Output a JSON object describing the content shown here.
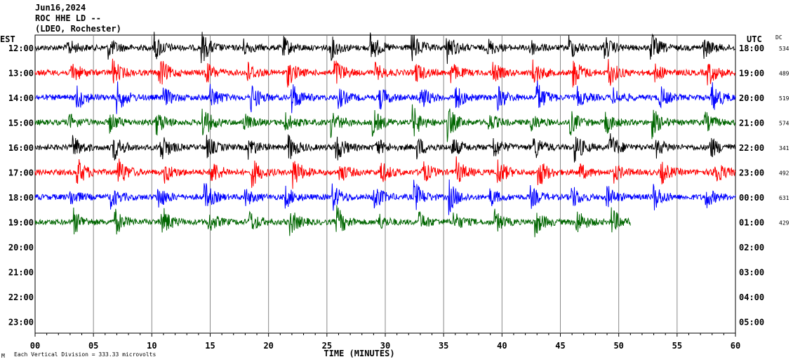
{
  "header": {
    "date": "Jun16,2024",
    "station": "ROC HHE LD --",
    "network": "(LDEO, Rochester)"
  },
  "chart_data": {
    "type": "line",
    "title": "Jun16,2024 ROC HHE LD --",
    "xlabel": "TIME (MINUTES)",
    "left_axis_title": "EST",
    "right_axis_title": "UTC",
    "dc_title": "DC",
    "xlim": [
      0,
      60
    ],
    "x_ticks": [
      "00",
      "05",
      "10",
      "15",
      "20",
      "25",
      "30",
      "35",
      "40",
      "45",
      "50",
      "55",
      "60"
    ],
    "est_labels": [
      "12:00",
      "13:00",
      "14:00",
      "15:00",
      "16:00",
      "17:00",
      "18:00",
      "19:00",
      "20:00",
      "21:00",
      "22:00",
      "23:00"
    ],
    "utc_labels": [
      "18:00",
      "19:00",
      "20:00",
      "21:00",
      "22:00",
      "23:00",
      "00:00",
      "01:00",
      "02:00",
      "03:00",
      "04:00",
      "05:00"
    ],
    "dc_values": [
      "534",
      "489",
      "519",
      "574",
      "341",
      "492",
      "631",
      "429"
    ],
    "trace_colors": [
      "#000000",
      "#ff0000",
      "#0000ff",
      "#006600"
    ],
    "trace_rows_recorded": 8,
    "last_row_end_minute": 51,
    "burst_minutes_approx": [
      3,
      6.5,
      10.5,
      14.5,
      18,
      21.5,
      25.5,
      29,
      32.5,
      35.5,
      39,
      42.5,
      46,
      49,
      53,
      57.5
    ],
    "footer_note": "Each Vertical Division =  333.33 microvolts",
    "corner_mark": "M"
  }
}
